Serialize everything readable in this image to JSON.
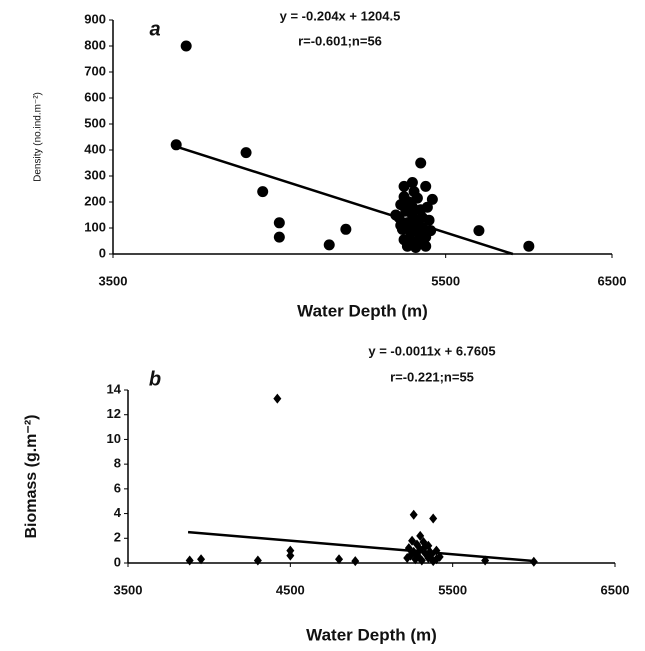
{
  "chart_data": [
    {
      "type": "scatter",
      "panel_label": "a",
      "marker": "circle",
      "color": "#000000",
      "annotations": [
        "y = -0.204x + 1204.5",
        "r=-0.601;n=56"
      ],
      "xlabel": "Water Depth (m)",
      "ylabel": "Density (no.ind.m⁻²)",
      "xlim": [
        3500,
        6500
      ],
      "xticks": [
        3500,
        5500,
        6500
      ],
      "ylim": [
        0,
        900
      ],
      "yticks": [
        0,
        100,
        200,
        300,
        400,
        500,
        600,
        700,
        800,
        900
      ],
      "points": {
        "x": [
          3880,
          3940,
          4300,
          4400,
          4500,
          4500,
          4800,
          4900,
          5700,
          6000,
          5350,
          5250,
          5300,
          5380,
          5420,
          5230,
          5280,
          5330,
          5260,
          5300,
          5350,
          5220,
          5400,
          5270,
          5310,
          5360,
          5240,
          5290,
          5340,
          5380,
          5250,
          5300,
          5350,
          5270,
          5320,
          5380,
          5230,
          5410,
          5200,
          5300,
          5330,
          5280,
          5360,
          5250,
          5310,
          5390
        ],
        "y": [
          420,
          800,
          390,
          240,
          120,
          65,
          35,
          95,
          90,
          30,
          350,
          260,
          275,
          260,
          210,
          190,
          200,
          215,
          165,
          150,
          170,
          140,
          130,
          120,
          110,
          100,
          95,
          85,
          75,
          65,
          55,
          45,
          40,
          30,
          25,
          30,
          110,
          90,
          150,
          180,
          130,
          60,
          140,
          220,
          240,
          180
        ]
      },
      "trend_line": {
        "x": [
          3870,
          5904
        ],
        "y": [
          415,
          0
        ]
      }
    },
    {
      "type": "scatter",
      "panel_label": "b",
      "marker": "diamond",
      "color": "#000000",
      "annotations": [
        "y = -0.0011x + 6.7605",
        "r=-0.221;n=55"
      ],
      "xlabel": "Water Depth (m)",
      "ylabel": "Biomass (g.m⁻²)",
      "xlim": [
        3500,
        6500
      ],
      "xticks": [
        3500,
        4500,
        5500,
        6500
      ],
      "ylim": [
        0,
        14
      ],
      "yticks": [
        0,
        2,
        4,
        6,
        8,
        10,
        12,
        14
      ],
      "points": {
        "x": [
          3880,
          3950,
          4300,
          4420,
          4500,
          4500,
          4800,
          4900,
          5700,
          6000,
          5260,
          5380,
          5300,
          5250,
          5320,
          5280,
          5350,
          5230,
          5300,
          5400,
          5260,
          5330,
          5370,
          5240,
          5290,
          5350,
          5420,
          5270,
          5310,
          5380,
          5220,
          5330,
          5280,
          5360,
          5400
        ],
        "y": [
          0.2,
          0.3,
          0.2,
          13.3,
          1.0,
          0.6,
          0.3,
          0.15,
          0.2,
          0.1,
          3.9,
          3.6,
          2.2,
          1.8,
          1.7,
          1.5,
          1.4,
          1.2,
          1.1,
          1.0,
          0.9,
          0.8,
          0.7,
          0.6,
          0.5,
          0.4,
          0.5,
          0.3,
          0.2,
          0.15,
          0.4,
          1.3,
          0.7,
          0.9,
          0.3
        ]
      },
      "trend_line": {
        "x": [
          3870,
          6000
        ],
        "y": [
          2.5,
          0.16
        ]
      }
    }
  ]
}
